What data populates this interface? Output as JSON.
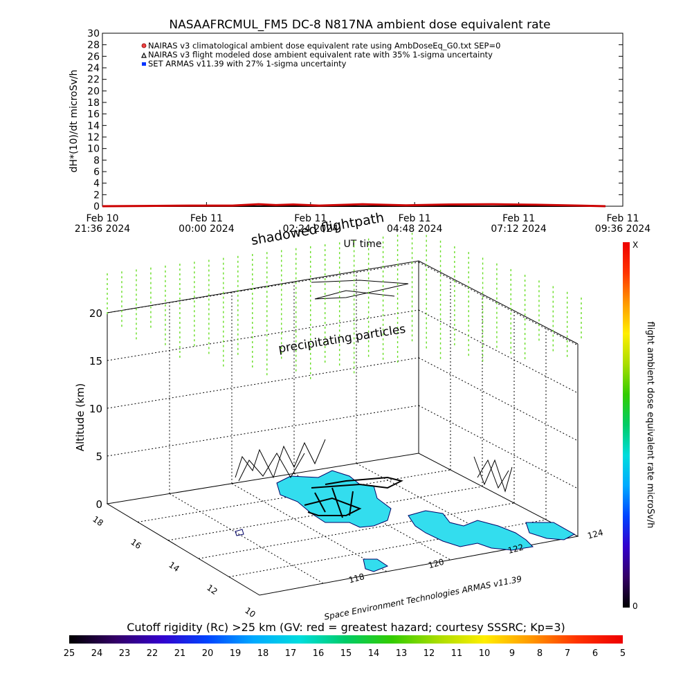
{
  "title": "NASAAFRCMUL_FM5 DC-8   N817NA ambient dose equivalent rate",
  "colors": {
    "nairas_clim": "#cc0000",
    "flight_model": "#000000",
    "armas": "#0033ff",
    "particles": "#66dd22",
    "ocean_fill": "#33ddee",
    "coast": "#000066"
  },
  "chart_data": [
    {
      "type": "line",
      "ylabel": "dH*(10)/dt microSv/h",
      "xlabel": "UT time",
      "ylim": [
        0,
        30
      ],
      "y_ticks": [
        "0",
        "2",
        "4",
        "6",
        "8",
        "10",
        "12",
        "14",
        "16",
        "18",
        "20",
        "22",
        "24",
        "26",
        "28",
        "30"
      ],
      "x_ticks": [
        {
          "top": "Feb 10",
          "bottom": "21:36 2024"
        },
        {
          "top": "Feb 11",
          "bottom": "00:00 2024"
        },
        {
          "top": "Feb 11",
          "bottom": "02:24 2024"
        },
        {
          "top": "Feb 11",
          "bottom": "04:48 2024"
        },
        {
          "top": "Feb 11",
          "bottom": "07:12 2024"
        },
        {
          "top": "Feb 11",
          "bottom": "09:36 2024"
        }
      ],
      "x_hours": [
        0,
        2.4,
        4.8,
        7.2,
        9.6,
        12.0
      ],
      "legend": [
        "NAIRAS v3 climatological ambient dose equivalent rate using AmbDoseEq_G0.txt SEP=0",
        "NAIRAS v3 flight modeled dose ambient equivalent rate with 35% 1-sigma uncertainty",
        "SET ARMAS v11.39 with 27% 1-sigma uncertainty"
      ],
      "series": [
        {
          "name": "NAIRAS v3 climatological ambient dose equivalent rate using AmbDoseEq_G0.txt SEP=0",
          "x": [
            0.0,
            11.6
          ],
          "y": [
            0.0,
            0.0
          ]
        },
        {
          "name": "NAIRAS v3 flight modeled dose ambient equivalent rate with 35% 1-sigma uncertainty",
          "x": [
            0.0,
            1.0,
            2.0,
            3.0,
            3.6,
            4.0,
            4.4,
            5.0,
            6.0,
            7.0,
            8.0,
            9.0,
            10.0,
            11.0,
            11.6
          ],
          "y": [
            0.0,
            0.05,
            0.1,
            0.1,
            0.35,
            0.2,
            0.3,
            0.1,
            0.35,
            0.15,
            0.3,
            0.35,
            0.25,
            0.1,
            0.0
          ]
        }
      ]
    },
    {
      "type": "scatter",
      "zlabel": "Altitude (km)",
      "z_ticks": [
        "0",
        "5",
        "10",
        "15",
        "20"
      ],
      "lat_ticks": [
        "10",
        "12",
        "14",
        "16",
        "18"
      ],
      "lon_ticks": [
        "118",
        "120",
        "122",
        "124"
      ],
      "annotations": [
        "shadowed flightpath",
        "precipitating particles"
      ],
      "credit": "Space Environment Technologies ARMAS v11.39"
    }
  ],
  "dose_colorbar": {
    "label": "flight ambient dose equivalent rate microSv/h",
    "top_label": "X",
    "bottom_label": "0",
    "colors": [
      "#000000",
      "#330066",
      "#3300cc",
      "#0044ff",
      "#00aaff",
      "#00dddd",
      "#00cc66",
      "#33cc00",
      "#aadd00",
      "#ffee00",
      "#ff9900",
      "#ff3300",
      "#ee0000"
    ]
  },
  "rigidity_colorbar": {
    "title": "Cutoff rigidity (Rc) >25 km (GV: red = greatest hazard; courtesy SSSRC; Kp=3)",
    "ticks": [
      "25",
      "24",
      "23",
      "22",
      "21",
      "20",
      "19",
      "18",
      "17",
      "16",
      "15",
      "14",
      "13",
      "12",
      "11",
      "10",
      "9",
      "8",
      "7",
      "6",
      "5"
    ],
    "colors": [
      "#000000",
      "#330066",
      "#3300cc",
      "#0044ff",
      "#00aaff",
      "#00dddd",
      "#00cc66",
      "#33cc00",
      "#aadd00",
      "#ffee00",
      "#ff9900",
      "#ff3300",
      "#ee0000"
    ]
  }
}
